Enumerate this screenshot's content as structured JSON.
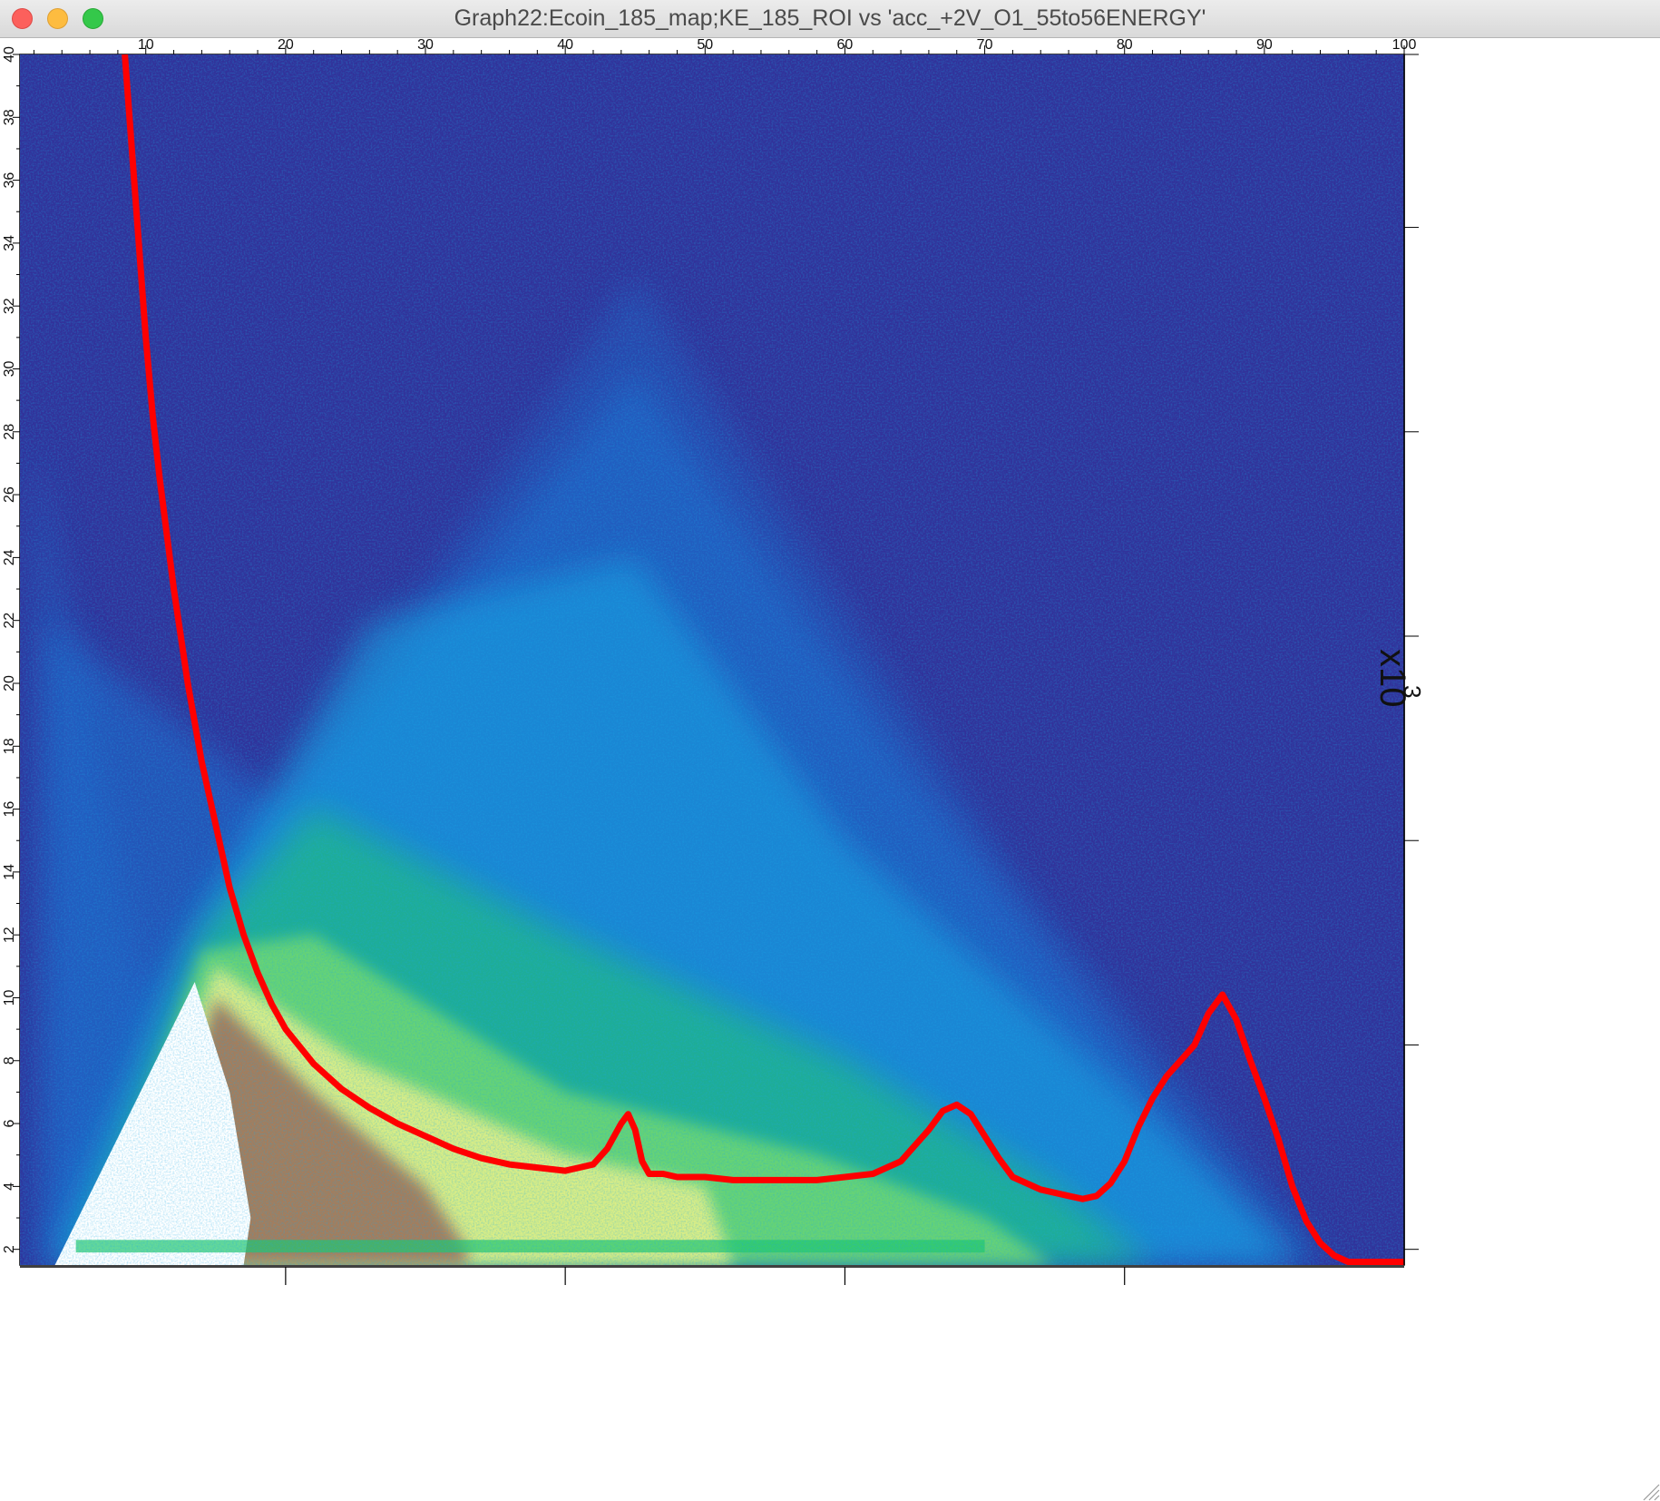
{
  "window": {
    "title": "Graph22:Ecoin_185_map;KE_185_ROI vs 'acc_+2V_O1_55to56ENERGY'"
  },
  "colors": {
    "plot_background": "#32329a",
    "trace": "#ff0000",
    "colormap": [
      "#32329a",
      "#1f6fd0",
      "#17a9e6",
      "#22c86e",
      "#7fe06a",
      "#eef28a",
      "#9c6b55",
      "#ffffff"
    ]
  },
  "chart_data": {
    "type": "heatmap",
    "title": "Graph22:Ecoin_185_map;KE_185_ROI vs 'acc_+2V_O1_55to56ENERGY'",
    "xlabel": "",
    "ylabel": "",
    "xlim": [
      1,
      100
    ],
    "ylim": [
      1.5,
      40
    ],
    "x_ticks": [
      10,
      20,
      30,
      40,
      50,
      60,
      70,
      80,
      90,
      100
    ],
    "y_ticks": [
      2,
      4,
      6,
      8,
      10,
      12,
      14,
      16,
      18,
      20,
      22,
      24,
      26,
      28,
      30,
      32,
      34,
      36,
      38,
      40
    ],
    "right_axis_label": "x10",
    "right_axis_exponent": "3",
    "right_axis_ticks_y": [
      2,
      8.5,
      15,
      21.5,
      28,
      34.5,
      40
    ],
    "bottom_axis_ticks_x": [
      20,
      40,
      60,
      80
    ],
    "trace": {
      "x": [
        8.5,
        9,
        9.5,
        10,
        10.5,
        11,
        12,
        13,
        14,
        15,
        16,
        17,
        18,
        19,
        20,
        22,
        24,
        26,
        28,
        30,
        32,
        34,
        36,
        38,
        40,
        42,
        43,
        44,
        44.5,
        45,
        45.5,
        46,
        47,
        48,
        50,
        52,
        54,
        56,
        58,
        60,
        62,
        64,
        66,
        67,
        68,
        69,
        70,
        71,
        72,
        74,
        76,
        77,
        78,
        79,
        80,
        81,
        82,
        83,
        84,
        85,
        86,
        87,
        88,
        89,
        90,
        91,
        92,
        93,
        94,
        95,
        96,
        98,
        100
      ],
      "y": [
        40,
        37,
        34,
        31,
        28.5,
        26.5,
        23,
        20,
        17.5,
        15.5,
        13.5,
        12,
        10.8,
        9.8,
        9.0,
        7.9,
        7.1,
        6.5,
        6.0,
        5.6,
        5.2,
        4.9,
        4.7,
        4.6,
        4.5,
        4.7,
        5.2,
        6.0,
        6.3,
        5.8,
        4.8,
        4.4,
        4.4,
        4.3,
        4.3,
        4.2,
        4.2,
        4.2,
        4.2,
        4.3,
        4.4,
        4.8,
        5.8,
        6.4,
        6.6,
        6.3,
        5.6,
        4.9,
        4.3,
        3.9,
        3.7,
        3.6,
        3.7,
        4.1,
        4.8,
        5.9,
        6.8,
        7.5,
        8.0,
        8.5,
        9.5,
        10.1,
        9.3,
        8.0,
        6.8,
        5.5,
        4.0,
        2.9,
        2.2,
        1.8,
        1.6,
        1.6,
        1.6
      ]
    },
    "grid": false,
    "legend": "none"
  }
}
